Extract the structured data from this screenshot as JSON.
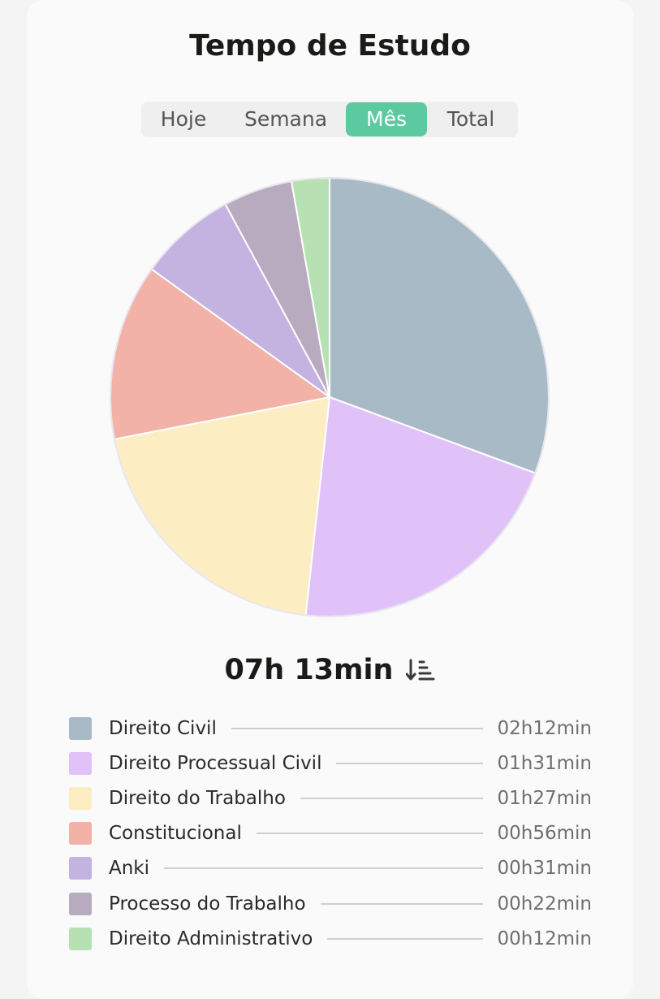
{
  "header": {
    "title": "Tempo de Estudo"
  },
  "tabs": [
    {
      "label": "Hoje",
      "active": false
    },
    {
      "label": "Semana",
      "active": false
    },
    {
      "label": "Mês",
      "active": true
    },
    {
      "label": "Total",
      "active": false
    }
  ],
  "summary": {
    "total": "07h 13min",
    "sort_icon": "sort-descending-icon"
  },
  "colors": {
    "accent": "#5dc9a1"
  },
  "chart_data": {
    "type": "pie",
    "title": "",
    "unit": "min",
    "series": [
      {
        "name": "Direito Civil",
        "label": "02h12min",
        "value": 132,
        "color": "#a9bac7"
      },
      {
        "name": "Direito Processual Civil",
        "label": "01h31min",
        "value": 91,
        "color": "#e0c2f9"
      },
      {
        "name": "Direito do Trabalho",
        "label": "01h27min",
        "value": 87,
        "color": "#fcedc3"
      },
      {
        "name": "Constitucional",
        "label": "00h56min",
        "value": 56,
        "color": "#f2b2a8"
      },
      {
        "name": "Anki",
        "label": "00h31min",
        "value": 31,
        "color": "#c4b3e0"
      },
      {
        "name": "Processo do Trabalho",
        "label": "00h22min",
        "value": 22,
        "color": "#b9abbf"
      },
      {
        "name": "Direito Administrativo",
        "label": "00h12min",
        "value": 12,
        "color": "#b7e1b3"
      }
    ]
  }
}
